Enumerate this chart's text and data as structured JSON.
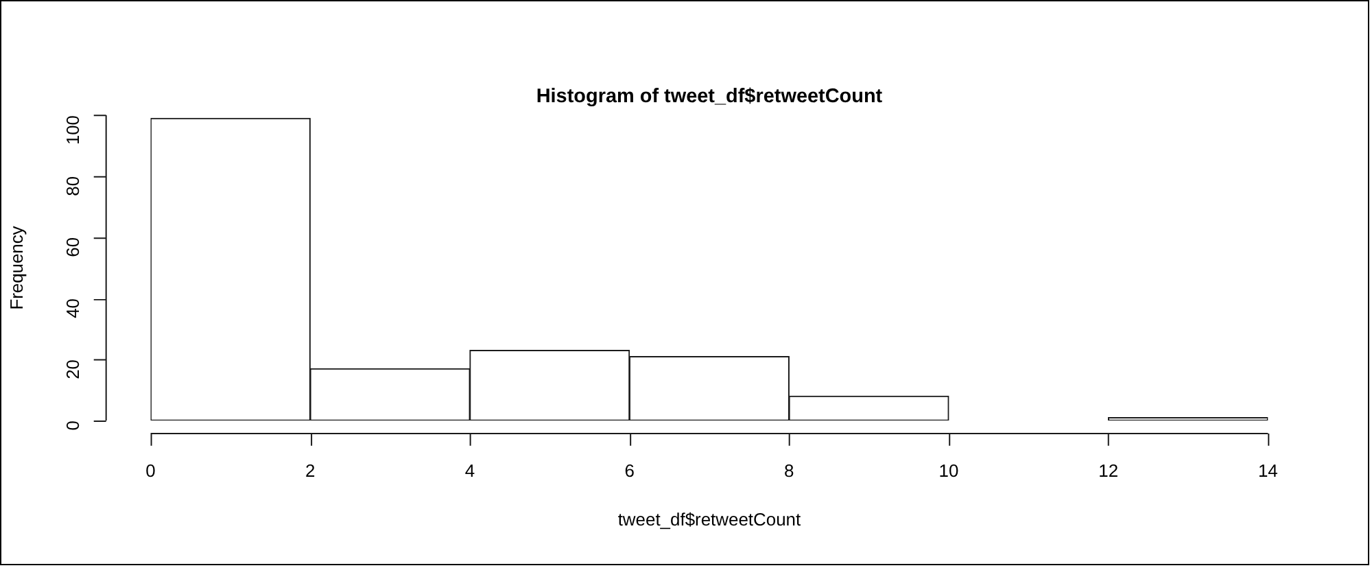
{
  "chart_data": {
    "type": "histogram",
    "title": "Histogram of tweet_df$retweetCount",
    "xlabel": "tweet_df$retweetCount",
    "ylabel": "Frequency",
    "bins": [
      0,
      2,
      4,
      6,
      8,
      10,
      12,
      14
    ],
    "values": [
      99,
      17,
      23,
      21,
      8,
      0,
      1
    ],
    "color": "#ffffff",
    "xlim": [
      0,
      14
    ],
    "xticks": [
      0,
      2,
      4,
      6,
      8,
      10,
      12,
      14
    ],
    "ylim": [
      0,
      100
    ],
    "yticks": [
      0,
      20,
      40,
      60,
      80,
      100
    ]
  }
}
